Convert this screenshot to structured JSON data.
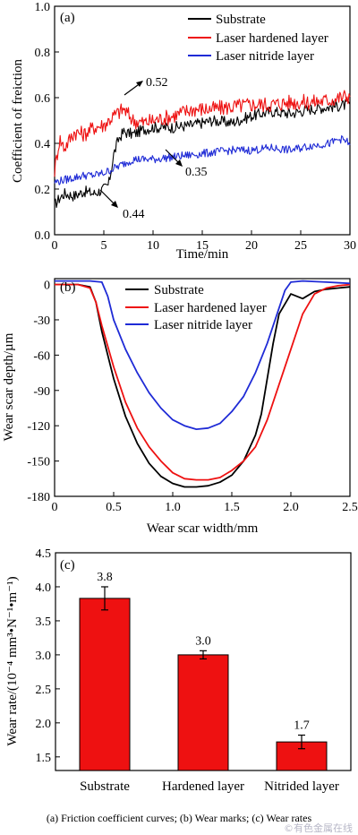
{
  "chart_data": [
    {
      "type": "line",
      "panel_label": "(a)",
      "xlabel": "Time/min",
      "ylabel": "Coefficient of freiction",
      "xlim": [
        0,
        30
      ],
      "ylim": [
        0.0,
        1.0
      ],
      "xticks": [
        "0",
        "5",
        "10",
        "15",
        "20",
        "25",
        "30"
      ],
      "yticks": [
        "0.0",
        "0.2",
        "0.4",
        "0.6",
        "0.8",
        "1.0"
      ],
      "legend_position": "top-right",
      "annotations": [
        "0.52",
        "0.35",
        "0.44"
      ],
      "series": [
        {
          "name": "Substrate",
          "color": "#000000",
          "x": [
            0,
            0.5,
            1,
            2,
            3,
            4,
            5,
            5.5,
            6,
            6.5,
            7,
            8,
            9,
            10,
            12,
            14,
            16,
            18,
            20,
            22,
            24,
            26,
            28,
            30
          ],
          "y": [
            0.13,
            0.16,
            0.18,
            0.17,
            0.19,
            0.18,
            0.2,
            0.22,
            0.35,
            0.42,
            0.45,
            0.44,
            0.46,
            0.47,
            0.47,
            0.48,
            0.5,
            0.49,
            0.52,
            0.54,
            0.53,
            0.55,
            0.56,
            0.57
          ]
        },
        {
          "name": "Laser hardened layer",
          "color": "#ee1111",
          "x": [
            0,
            0.5,
            1,
            2,
            3,
            4,
            5,
            6,
            7,
            8,
            9,
            10,
            12,
            14,
            16,
            18,
            20,
            22,
            24,
            26,
            28,
            30
          ],
          "y": [
            0.28,
            0.42,
            0.38,
            0.45,
            0.44,
            0.47,
            0.48,
            0.52,
            0.55,
            0.5,
            0.49,
            0.5,
            0.52,
            0.55,
            0.55,
            0.56,
            0.57,
            0.57,
            0.58,
            0.58,
            0.59,
            0.61
          ]
        },
        {
          "name": "Laser nitride layer",
          "color": "#1f2bd6",
          "x": [
            0,
            1,
            2,
            3,
            4,
            5,
            6,
            7,
            8,
            9,
            10,
            12,
            14,
            16,
            18,
            20,
            22,
            24,
            26,
            28,
            29,
            30
          ],
          "y": [
            0.23,
            0.24,
            0.25,
            0.26,
            0.26,
            0.27,
            0.29,
            0.31,
            0.33,
            0.33,
            0.33,
            0.34,
            0.35,
            0.36,
            0.37,
            0.37,
            0.38,
            0.37,
            0.39,
            0.4,
            0.42,
            0.4
          ]
        }
      ]
    },
    {
      "type": "line",
      "panel_label": "(b)",
      "xlabel": "Wear scar width/mm",
      "ylabel": "Wear scar depth/µm",
      "xlim": [
        0,
        2.5
      ],
      "ylim": [
        -180,
        5
      ],
      "xticks": [
        "0",
        "0.5",
        "1.0",
        "1.5",
        "2.0",
        "2.5"
      ],
      "yticks": [
        "0",
        "-30",
        "-60",
        "-90",
        "-120",
        "-150",
        "-180"
      ],
      "legend_position": "top-center",
      "series": [
        {
          "name": "Substrate",
          "color": "#000000",
          "x": [
            0,
            0.2,
            0.3,
            0.35,
            0.4,
            0.5,
            0.6,
            0.7,
            0.8,
            0.9,
            1.0,
            1.1,
            1.2,
            1.3,
            1.4,
            1.5,
            1.6,
            1.7,
            1.75,
            1.8,
            1.85,
            1.9,
            2.0,
            2.1,
            2.2,
            2.3,
            2.4,
            2.5
          ],
          "y": [
            0,
            0,
            -2,
            -15,
            -40,
            -80,
            -112,
            -135,
            -152,
            -163,
            -169,
            -172,
            -172,
            -171,
            -168,
            -162,
            -150,
            -128,
            -110,
            -80,
            -50,
            -25,
            -8,
            -12,
            -6,
            -4,
            -3,
            -2
          ]
        },
        {
          "name": "Laser hardened layer",
          "color": "#ee1111",
          "x": [
            0,
            0.2,
            0.3,
            0.35,
            0.4,
            0.5,
            0.6,
            0.7,
            0.8,
            0.9,
            1.0,
            1.1,
            1.2,
            1.3,
            1.4,
            1.5,
            1.6,
            1.7,
            1.8,
            1.9,
            2.0,
            2.1,
            2.2,
            2.3,
            2.4,
            2.5
          ],
          "y": [
            0,
            0,
            -3,
            -15,
            -35,
            -70,
            -100,
            -122,
            -138,
            -150,
            -160,
            -165,
            -166,
            -166,
            -164,
            -158,
            -150,
            -138,
            -115,
            -85,
            -55,
            -25,
            -8,
            -3,
            -1,
            0
          ]
        },
        {
          "name": "Laser nitride layer",
          "color": "#1f2bd6",
          "x": [
            0,
            0.3,
            0.4,
            0.45,
            0.5,
            0.6,
            0.7,
            0.8,
            0.9,
            1.0,
            1.1,
            1.2,
            1.3,
            1.4,
            1.5,
            1.6,
            1.7,
            1.8,
            1.9,
            1.95,
            2.0,
            2.1,
            2.3,
            2.5
          ],
          "y": [
            3,
            3,
            2,
            -10,
            -30,
            -55,
            -75,
            -92,
            -105,
            -115,
            -120,
            -123,
            -122,
            -118,
            -108,
            -95,
            -75,
            -50,
            -20,
            -5,
            2,
            3,
            2,
            1
          ]
        }
      ]
    },
    {
      "type": "bar",
      "panel_label": "(c)",
      "xlabel": "",
      "ylabel": "Wear rate/(10⁻⁴ mm³•N⁻¹•m⁻¹)",
      "ylim": [
        1.3,
        4.5
      ],
      "yticks": [
        "1.5",
        "2.0",
        "2.5",
        "3.0",
        "3.5",
        "4.0",
        "4.5"
      ],
      "categories": [
        "Substrate",
        "Hardened layer",
        "Nitrided layer"
      ],
      "values": [
        3.83,
        3.0,
        1.72
      ],
      "errors": [
        0.17,
        0.06,
        0.1
      ],
      "value_labels": [
        "3.8",
        "3.0",
        "1.7"
      ],
      "bar_color": "#ee1111"
    }
  ],
  "caption": "(a) Friction coefficient curves; (b) Wear marks; (c) Wear rates",
  "watermark": "©有色金属在线"
}
